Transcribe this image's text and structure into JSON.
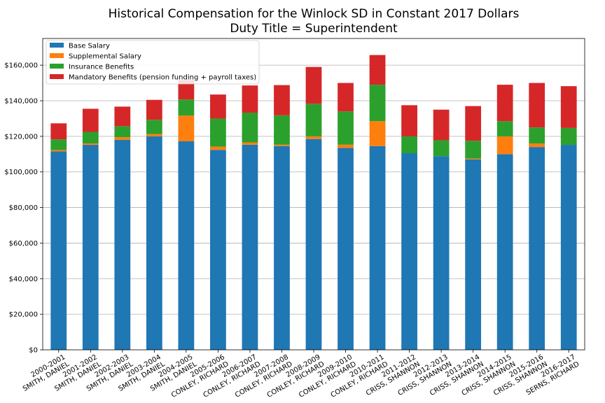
{
  "chart_data": {
    "type": "bar",
    "stacked": true,
    "title": [
      "Historical Compensation for the Winlock SD in Constant 2017 Dollars",
      "Duty Title = Superintendent"
    ],
    "xlabel": "",
    "ylabel": "",
    "ylim": [
      0,
      175000
    ],
    "yticks": [
      0,
      20000,
      40000,
      60000,
      80000,
      100000,
      120000,
      140000,
      160000
    ],
    "ytick_labels": [
      "$0",
      "$20,000",
      "$40,000",
      "$60,000",
      "$80,000",
      "$100,000",
      "$120,000",
      "$140,000",
      "$160,000"
    ],
    "grid": "horizontal",
    "legend_position": "top-left",
    "categories": [
      [
        "2000-2001",
        "SMITH, DANIEL"
      ],
      [
        "2001-2002",
        "SMITH, DANIEL"
      ],
      [
        "2002-2003",
        "SMITH, DANIEL"
      ],
      [
        "2003-2004",
        "SMITH, DANIEL"
      ],
      [
        "2004-2005",
        "SMITH, DANIEL"
      ],
      [
        "2005-2006",
        "CONLEY, RICHARD"
      ],
      [
        "2006-2007",
        "CONLEY, RICHARD"
      ],
      [
        "2007-2008",
        "CONLEY, RICHARD"
      ],
      [
        "2008-2009",
        "CONLEY, RICHARD"
      ],
      [
        "2009-2010",
        "CONLEY, RICHARD"
      ],
      [
        "2010-2011",
        "CONLEY, RICHARD"
      ],
      [
        "2011-2012",
        "CRISS, SHANNON"
      ],
      [
        "2012-2013",
        "CRISS, SHANNON"
      ],
      [
        "2013-2014",
        "CRISS, SHANNON"
      ],
      [
        "2014-2015",
        "CRISS, SHANNON"
      ],
      [
        "2015-2016",
        "CRISS, SHANNON"
      ],
      [
        "2016-2017",
        "SERNS, RICHARD"
      ]
    ],
    "series": [
      {
        "name": "Base Salary",
        "color": "#1f77b4",
        "values": [
          111500,
          115200,
          118000,
          120000,
          117200,
          112400,
          115300,
          114500,
          118500,
          113500,
          114500,
          110500,
          108800,
          107000,
          110000,
          114000,
          115200
        ]
      },
      {
        "name": "Supplemental Salary",
        "color": "#ff7f0e",
        "values": [
          800,
          800,
          1500,
          1300,
          14500,
          1800,
          1300,
          800,
          1500,
          1800,
          14000,
          0,
          0,
          500,
          10000,
          2000,
          0
        ]
      },
      {
        "name": "Insurance Benefits",
        "color": "#2ca02c",
        "values": [
          6000,
          6500,
          6200,
          8000,
          9000,
          15800,
          16700,
          16500,
          18300,
          18700,
          20500,
          9500,
          9000,
          10000,
          8500,
          9000,
          9500
        ]
      },
      {
        "name": "Mandatory Benefits (pension funding + payroll taxes)",
        "color": "#d62728",
        "values": [
          9000,
          13000,
          11000,
          11200,
          11000,
          13500,
          15300,
          17000,
          20700,
          16000,
          16700,
          17500,
          17200,
          19500,
          20500,
          25000,
          23500
        ]
      }
    ]
  }
}
